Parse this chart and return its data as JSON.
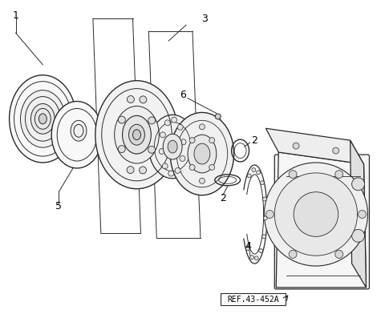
{
  "background_color": "#ffffff",
  "line_color": "#2a2a2a",
  "label_color": "#000000",
  "ref_text": "REF.43-452A",
  "fig_width": 4.8,
  "fig_height": 3.97,
  "dpi": 100
}
